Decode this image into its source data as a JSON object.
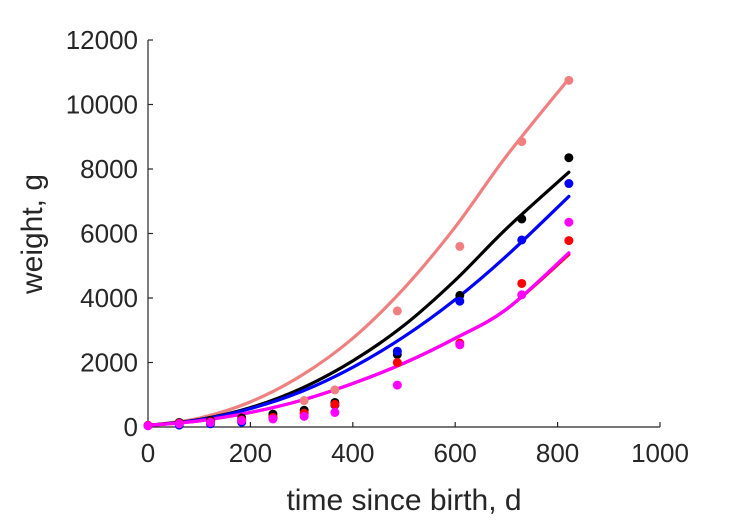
{
  "chart_data": {
    "type": "scatter",
    "title": "",
    "xlabel": "time since birth, d",
    "ylabel": "weight, g",
    "xlim": [
      0,
      1000
    ],
    "ylim": [
      0,
      12000
    ],
    "xticks": [
      0,
      200,
      400,
      600,
      800,
      1000
    ],
    "yticks": [
      0,
      2000,
      4000,
      6000,
      8000,
      10000,
      12000
    ],
    "xtick_labels": [
      "0",
      "200",
      "400",
      "600",
      "800",
      "1000"
    ],
    "ytick_labels": [
      "0",
      "2000",
      "4000",
      "6000",
      "8000",
      "10000",
      "12000"
    ],
    "grid": false,
    "legend": "none",
    "series": [
      {
        "color": "#f08080",
        "points": [
          [
            0,
            50
          ],
          [
            61,
            120
          ],
          [
            122,
            170
          ],
          [
            183,
            210
          ],
          [
            244,
            330
          ],
          [
            305,
            820
          ],
          [
            365,
            1150
          ],
          [
            487,
            3600
          ],
          [
            609,
            5600
          ],
          [
            730,
            8850
          ],
          [
            822,
            10750
          ]
        ],
        "fit": [
          [
            0,
            50
          ],
          [
            100,
            275
          ],
          [
            200,
            780
          ],
          [
            300,
            1600
          ],
          [
            400,
            2750
          ],
          [
            500,
            4300
          ],
          [
            600,
            6200
          ],
          [
            700,
            8400
          ],
          [
            822,
            10800
          ]
        ]
      },
      {
        "color": "#000000",
        "points": [
          [
            0,
            50
          ],
          [
            61,
            140
          ],
          [
            122,
            200
          ],
          [
            183,
            280
          ],
          [
            244,
            400
          ],
          [
            305,
            520
          ],
          [
            365,
            760
          ],
          [
            487,
            2250
          ],
          [
            609,
            4080
          ],
          [
            730,
            6450
          ],
          [
            822,
            8350
          ]
        ],
        "fit": [
          [
            0,
            50
          ],
          [
            100,
            230
          ],
          [
            200,
            600
          ],
          [
            300,
            1200
          ],
          [
            400,
            2050
          ],
          [
            500,
            3150
          ],
          [
            600,
            4550
          ],
          [
            700,
            6150
          ],
          [
            822,
            7900
          ]
        ]
      },
      {
        "color": "#0000ff",
        "points": [
          [
            0,
            40
          ],
          [
            61,
            60
          ],
          [
            122,
            100
          ],
          [
            183,
            150
          ],
          [
            244,
            280
          ],
          [
            305,
            420
          ],
          [
            365,
            680
          ],
          [
            487,
            2350
          ],
          [
            609,
            3900
          ],
          [
            730,
            5800
          ],
          [
            822,
            7550
          ]
        ],
        "fit": [
          [
            0,
            50
          ],
          [
            100,
            220
          ],
          [
            200,
            570
          ],
          [
            300,
            1100
          ],
          [
            400,
            1850
          ],
          [
            500,
            2800
          ],
          [
            600,
            3950
          ],
          [
            700,
            5300
          ],
          [
            822,
            7150
          ]
        ]
      },
      {
        "color": "#ff0000",
        "points": [
          [
            0,
            50
          ],
          [
            61,
            120
          ],
          [
            122,
            160
          ],
          [
            183,
            220
          ],
          [
            244,
            300
          ],
          [
            305,
            430
          ],
          [
            365,
            700
          ],
          [
            487,
            2000
          ],
          [
            609,
            2600
          ],
          [
            730,
            4450
          ],
          [
            822,
            5780
          ]
        ],
        "fit": [
          [
            0,
            50
          ],
          [
            100,
            190
          ],
          [
            200,
            450
          ],
          [
            300,
            830
          ],
          [
            400,
            1350
          ],
          [
            500,
            1980
          ],
          [
            600,
            2750
          ],
          [
            700,
            3650
          ],
          [
            822,
            5350
          ]
        ]
      },
      {
        "color": "#ff00ff",
        "points": [
          [
            0,
            40
          ],
          [
            61,
            100
          ],
          [
            122,
            140
          ],
          [
            183,
            200
          ],
          [
            244,
            250
          ],
          [
            305,
            330
          ],
          [
            365,
            450
          ],
          [
            487,
            1300
          ],
          [
            609,
            2550
          ],
          [
            730,
            4100
          ],
          [
            822,
            6350
          ]
        ],
        "fit": [
          [
            0,
            50
          ],
          [
            100,
            190
          ],
          [
            200,
            450
          ],
          [
            300,
            830
          ],
          [
            400,
            1350
          ],
          [
            500,
            1980
          ],
          [
            600,
            2750
          ],
          [
            700,
            3650
          ],
          [
            822,
            5400
          ]
        ]
      }
    ]
  }
}
